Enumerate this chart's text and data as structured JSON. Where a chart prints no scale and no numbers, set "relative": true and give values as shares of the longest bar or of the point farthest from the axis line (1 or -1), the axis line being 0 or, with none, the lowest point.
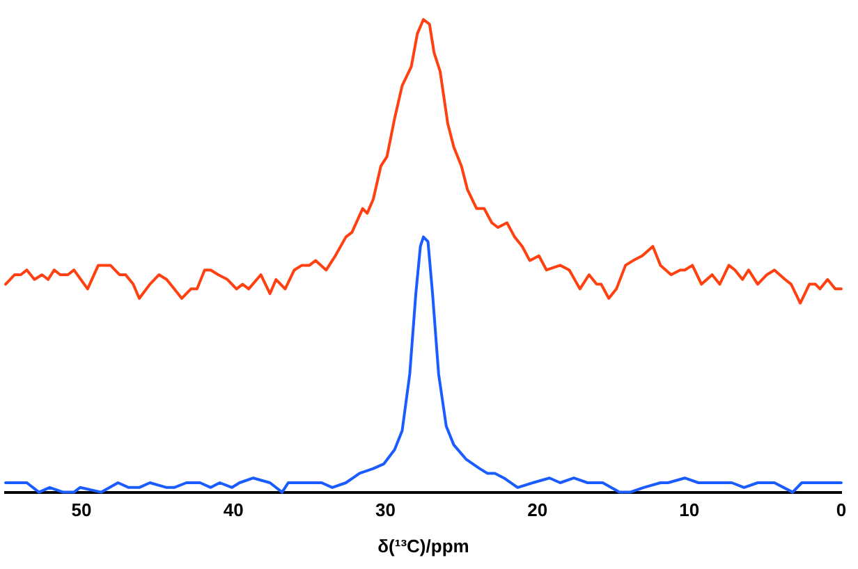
{
  "chart_data": {
    "type": "line",
    "xlabel": "δ(¹³C)/ppm",
    "relative": true,
    "xlim": [
      55,
      0
    ],
    "xticks": [
      50,
      40,
      30,
      20,
      10,
      0
    ],
    "grid": false,
    "legend": false,
    "marker": "none",
    "line_style": "solid",
    "tick_labels": "x",
    "series": [
      {
        "color": "#ff4010",
        "x": [
          55.0,
          54.4,
          54.0,
          53.6,
          53.1,
          52.6,
          52.2,
          51.8,
          51.4,
          50.9,
          50.5,
          49.6,
          48.9,
          48.1,
          47.5,
          47.1,
          46.6,
          46.2,
          45.5,
          44.9,
          44.4,
          43.9,
          43.4,
          42.8,
          42.4,
          41.9,
          41.5,
          41.0,
          40.4,
          39.8,
          39.4,
          39.0,
          38.2,
          37.6,
          37.2,
          36.6,
          36.0,
          35.5,
          35.0,
          34.6,
          33.9,
          33.3,
          32.6,
          32.2,
          31.5,
          31.2,
          30.8,
          30.3,
          29.9,
          29.4,
          28.9,
          28.3,
          27.9,
          27.5,
          27.1,
          26.8,
          26.4,
          25.9,
          25.5,
          25.0,
          24.6,
          24.0,
          23.5,
          23.0,
          22.6,
          22.0,
          21.5,
          21.0,
          20.5,
          19.9,
          19.4,
          18.5,
          17.9,
          17.2,
          16.6,
          16.1,
          15.8,
          15.3,
          14.8,
          14.2,
          13.7,
          13.1,
          12.4,
          11.9,
          11.2,
          10.6,
          10.3,
          9.8,
          9.2,
          8.5,
          8.0,
          7.4,
          7.0,
          6.5,
          6.1,
          5.5,
          4.9,
          4.4,
          3.7,
          3.3,
          2.7,
          2.1,
          1.7,
          1.4,
          0.9,
          0.4,
          0.0
        ],
        "values": [
          0.44,
          0.46,
          0.46,
          0.47,
          0.45,
          0.46,
          0.45,
          0.47,
          0.46,
          0.46,
          0.47,
          0.43,
          0.48,
          0.48,
          0.46,
          0.46,
          0.44,
          0.41,
          0.44,
          0.46,
          0.45,
          0.43,
          0.41,
          0.43,
          0.43,
          0.47,
          0.47,
          0.46,
          0.45,
          0.43,
          0.44,
          0.43,
          0.46,
          0.42,
          0.45,
          0.43,
          0.47,
          0.48,
          0.48,
          0.49,
          0.47,
          0.5,
          0.54,
          0.55,
          0.6,
          0.59,
          0.62,
          0.69,
          0.71,
          0.79,
          0.86,
          0.9,
          0.97,
          1.0,
          0.99,
          0.93,
          0.89,
          0.78,
          0.73,
          0.69,
          0.64,
          0.6,
          0.6,
          0.57,
          0.56,
          0.57,
          0.54,
          0.52,
          0.49,
          0.5,
          0.47,
          0.48,
          0.47,
          0.43,
          0.46,
          0.44,
          0.44,
          0.41,
          0.43,
          0.48,
          0.49,
          0.5,
          0.52,
          0.48,
          0.46,
          0.47,
          0.47,
          0.48,
          0.44,
          0.46,
          0.44,
          0.48,
          0.47,
          0.45,
          0.47,
          0.44,
          0.46,
          0.47,
          0.45,
          0.44,
          0.4,
          0.44,
          0.44,
          0.43,
          0.45,
          0.43,
          0.43
        ]
      },
      {
        "color": "#1a5cff",
        "x": [
          55.0,
          54.2,
          53.6,
          52.8,
          52.1,
          51.2,
          50.5,
          50.1,
          48.7,
          47.6,
          46.9,
          46.2,
          45.5,
          44.4,
          43.9,
          43.1,
          42.2,
          41.5,
          40.9,
          40.1,
          39.6,
          38.7,
          37.6,
          36.8,
          36.4,
          35.3,
          34.2,
          33.5,
          32.6,
          31.7,
          30.8,
          30.1,
          29.4,
          28.9,
          28.4,
          28.0,
          27.7,
          27.5,
          27.2,
          26.9,
          26.5,
          26.0,
          25.5,
          24.7,
          23.8,
          23.3,
          22.8,
          22.2,
          21.3,
          20.3,
          19.2,
          18.5,
          17.6,
          16.7,
          15.7,
          14.6,
          13.9,
          13.0,
          11.9,
          11.4,
          10.3,
          9.4,
          8.1,
          7.2,
          6.4,
          5.5,
          4.4,
          3.2,
          2.6,
          1.9,
          1.2,
          0.0
        ],
        "values": [
          0.02,
          0.02,
          0.02,
          0.0,
          0.01,
          0.0,
          0.0,
          0.01,
          0.0,
          0.02,
          0.01,
          0.01,
          0.02,
          0.01,
          0.01,
          0.02,
          0.02,
          0.01,
          0.02,
          0.01,
          0.02,
          0.03,
          0.02,
          0.0,
          0.02,
          0.02,
          0.02,
          0.01,
          0.02,
          0.04,
          0.05,
          0.06,
          0.09,
          0.13,
          0.25,
          0.42,
          0.52,
          0.54,
          0.53,
          0.42,
          0.25,
          0.14,
          0.1,
          0.07,
          0.05,
          0.04,
          0.04,
          0.03,
          0.01,
          0.02,
          0.03,
          0.02,
          0.03,
          0.02,
          0.02,
          0.0,
          0.0,
          0.01,
          0.02,
          0.02,
          0.03,
          0.02,
          0.02,
          0.02,
          0.01,
          0.02,
          0.02,
          0.0,
          0.02,
          0.02,
          0.02,
          0.02
        ]
      }
    ]
  }
}
